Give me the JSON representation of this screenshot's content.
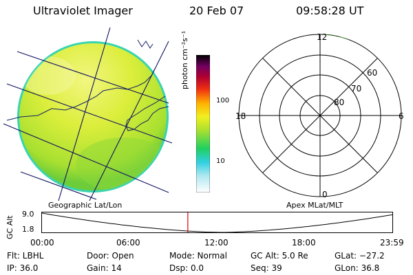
{
  "header": {
    "instrument": "Ultraviolet Imager",
    "date": "20 Feb 07",
    "time": "09:58:28 UT"
  },
  "colorbar": {
    "unit": "photon cm⁻²s⁻¹",
    "ticks": [
      "100",
      "10"
    ]
  },
  "left_panel": {
    "label": "Geographic Lat/Lon"
  },
  "right_panel": {
    "label": "Apex MLat/MLT",
    "mlt_labels": {
      "top": "12",
      "left": "18",
      "right": "6",
      "bottom": "0"
    },
    "mlat_labels": [
      "60",
      "70",
      "80"
    ]
  },
  "altitude_plot": {
    "axis_label": "GC Alt",
    "y_ticks": [
      "9.0",
      "1.8"
    ],
    "x_ticks": [
      "00:00",
      "06:00",
      "12:00",
      "18:00",
      "23:59"
    ],
    "current_time_hours": 9.97
  },
  "status": {
    "flt": "Flt: LBHL",
    "door": "Door: Open",
    "mode": "Mode: Normal",
    "gc_alt": "GC Alt: 5.0 Re",
    "glat": "GLat: −27.2",
    "ip": "IP: 36.0",
    "gain": "Gain: 14",
    "dsp": "Dsp:    0.0",
    "seq": "Seq: 39",
    "glon": "GLon:  36.8"
  },
  "colors": {
    "cursor_line": "#e00000",
    "image_fill": "#d8ec3a",
    "image_edge": "#20d0b0"
  }
}
